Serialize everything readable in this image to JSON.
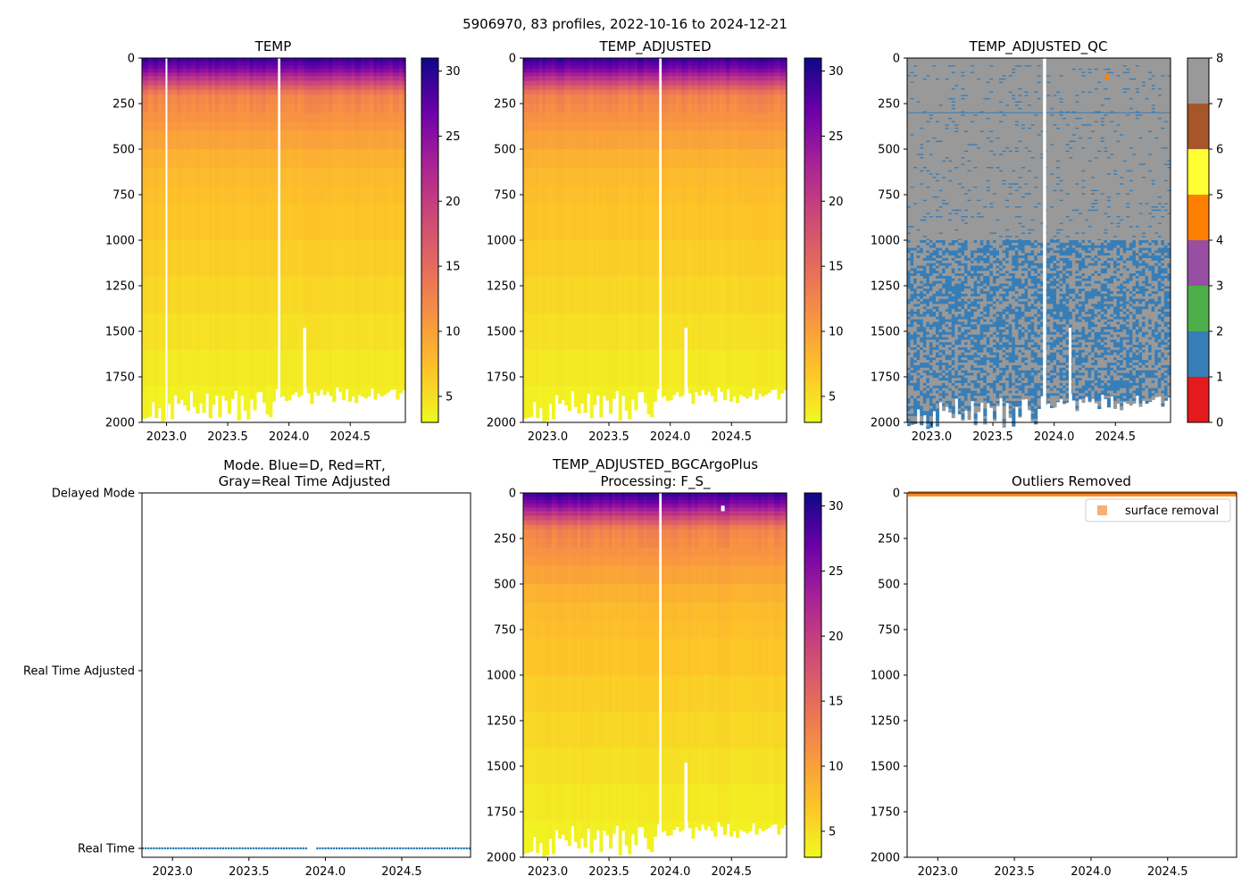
{
  "figure": {
    "suptitle": "5906970, 83 profiles, 2022-10-16 to 2024-12-21",
    "profile_count": 83,
    "date_start": "2022-10-16",
    "date_end": "2024-12-21"
  },
  "chart_data": [
    {
      "id": "temp",
      "type": "heatmap",
      "title": "TEMP",
      "xlim": [
        2022.8,
        2024.95
      ],
      "ylim": [
        2000,
        0
      ],
      "xticks": [
        "2023.0",
        "2023.5",
        "2024.0",
        "2024.5"
      ],
      "yticks": [
        "0",
        "250",
        "500",
        "750",
        "1000",
        "1250",
        "1500",
        "1750",
        "2000"
      ],
      "colormap": "plasma_r",
      "clim": [
        3,
        31
      ],
      "colorbar_ticks": [
        "5",
        "10",
        "15",
        "20",
        "25",
        "30"
      ],
      "surface_temp_range": [
        27,
        30
      ],
      "deep_temp_at_2000": 3,
      "gap_times": [
        2023.0,
        2023.92
      ],
      "gap_width_years": [
        0.012,
        0.02
      ],
      "short_profile": {
        "time": 2024.13,
        "max_depth": 1480
      }
    },
    {
      "id": "temp_adjusted",
      "type": "heatmap",
      "title": "TEMP_ADJUSTED",
      "xlim": [
        2022.8,
        2024.95
      ],
      "ylim": [
        2000,
        0
      ],
      "xticks": [
        "2023.0",
        "2023.5",
        "2024.0",
        "2024.5"
      ],
      "yticks": [
        "0",
        "250",
        "500",
        "750",
        "1000",
        "1250",
        "1500",
        "1750",
        "2000"
      ],
      "colormap": "plasma_r",
      "clim": [
        3,
        31
      ],
      "colorbar_ticks": [
        "5",
        "10",
        "15",
        "20",
        "25",
        "30"
      ],
      "gap_times": [
        2023.92
      ],
      "gap_width_years": [
        0.02
      ],
      "short_profile": {
        "time": 2024.13,
        "max_depth": 1480
      }
    },
    {
      "id": "temp_adjusted_qc",
      "type": "heatmap",
      "title": "TEMP_ADJUSTED_QC",
      "xlim": [
        2022.8,
        2024.95
      ],
      "ylim": [
        2000,
        0
      ],
      "xticks": [
        "2023.0",
        "2023.5",
        "2024.0",
        "2024.5"
      ],
      "yticks": [
        "0",
        "250",
        "500",
        "750",
        "1000",
        "1250",
        "1500",
        "1750",
        "2000"
      ],
      "qc_levels": [
        "0",
        "1",
        "2",
        "3",
        "4",
        "5",
        "6",
        "7",
        "8"
      ],
      "qc_colors": [
        "#e41a1c",
        "#377eb8",
        "#4daf4a",
        "#984ea3",
        "#ff7f00",
        "#ffff33",
        "#a65628",
        "#f781bf",
        "#999999"
      ],
      "dominant_flag_upper": 8,
      "mixed_flags_below": [
        1,
        8
      ],
      "mixed_depth_start": 1000,
      "flag4_point": {
        "time": 2024.43,
        "depth": 85
      },
      "flag1_line_depth": 300,
      "gap_times": [
        2023.92
      ],
      "short_profile": {
        "time": 2024.13,
        "max_depth": 1480
      }
    },
    {
      "id": "mode",
      "type": "scatter",
      "title_lines": [
        "Mode. Blue=D, Red=RT,",
        "Gray=Real Time Adjusted"
      ],
      "xlim": [
        2022.8,
        2024.95
      ],
      "xticks": [
        "2023.0",
        "2023.5",
        "2024.0",
        "2024.5"
      ],
      "ycategories": [
        "Delayed Mode",
        "Real Time Adjusted",
        "Real Time"
      ],
      "series": [
        {
          "name": "Real Time",
          "color": "#1f77b4",
          "category": "Real Time",
          "time_start": 2022.8,
          "time_end": 2024.95,
          "gap": [
            2023.88,
            2023.94
          ]
        }
      ]
    },
    {
      "id": "bgc_plus",
      "type": "heatmap",
      "title_lines": [
        "TEMP_ADJUSTED_BGCArgoPlus",
        "Processing: F_S_"
      ],
      "xlim": [
        2022.8,
        2024.95
      ],
      "ylim": [
        2000,
        0
      ],
      "xticks": [
        "2023.0",
        "2023.5",
        "2024.0",
        "2024.5"
      ],
      "yticks": [
        "0",
        "250",
        "500",
        "750",
        "1000",
        "1250",
        "1500",
        "1750",
        "2000"
      ],
      "colormap": "plasma_r",
      "clim": [
        3,
        31
      ],
      "colorbar_ticks": [
        "5",
        "10",
        "15",
        "20",
        "25",
        "30"
      ],
      "gap_times": [
        2023.92
      ],
      "gap_width_years": [
        0.02
      ],
      "missing_cell": {
        "time": 2024.43,
        "depth_range": [
          70,
          100
        ]
      },
      "short_profile": {
        "time": 2024.13,
        "max_depth": 1480
      }
    },
    {
      "id": "outliers",
      "type": "scatter",
      "title": "Outliers Removed",
      "xlim": [
        2022.8,
        2024.95
      ],
      "ylim": [
        2000,
        0
      ],
      "xticks": [
        "2023.0",
        "2023.5",
        "2024.0",
        "2024.5"
      ],
      "yticks": [
        "0",
        "250",
        "500",
        "750",
        "1000",
        "1250",
        "1500",
        "1750",
        "2000"
      ],
      "legend": [
        {
          "label": "surface removal",
          "color": "#f5a25f"
        }
      ],
      "legend_position": "top-right",
      "series": [
        {
          "name": "surface removal",
          "color": "#ff7f0e",
          "depth_range": [
            0,
            20
          ]
        }
      ]
    }
  ]
}
